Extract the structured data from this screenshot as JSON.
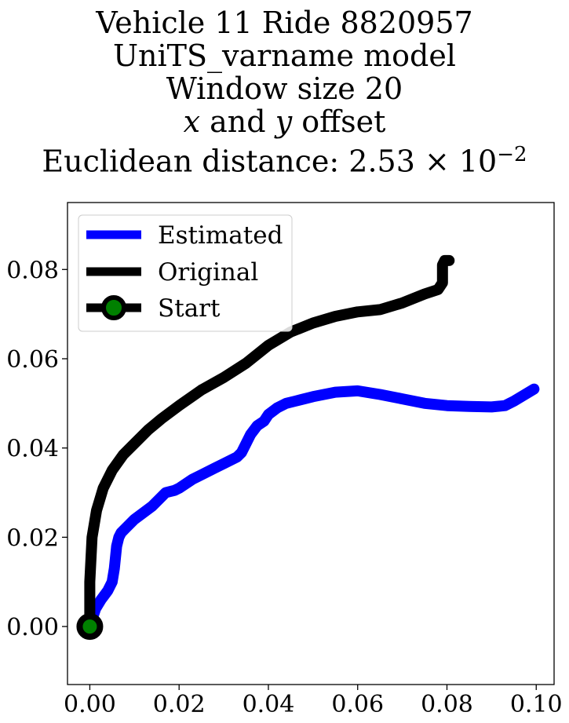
{
  "title": {
    "line1": "Vehicle 11 Ride 8820957",
    "line2": "UniTS_varname model",
    "line3": "Window size 20",
    "line4_x": "x",
    "line4_mid": " and ",
    "line4_y": "y",
    "line4_end": " offset",
    "line5_prefix": "Euclidean distance: 2.53 × 10",
    "line5_exp": "−2"
  },
  "chart_data": {
    "type": "line",
    "xlim": [
      -0.005,
      0.104
    ],
    "ylim": [
      -0.013,
      0.095
    ],
    "x_ticks": [
      0.0,
      0.02,
      0.04,
      0.06,
      0.08,
      0.1
    ],
    "x_tick_labels": [
      "0.00",
      "0.02",
      "0.04",
      "0.06",
      "0.08",
      "0.10"
    ],
    "y_ticks": [
      0.0,
      0.02,
      0.04,
      0.06,
      0.08
    ],
    "y_tick_labels": [
      "0.00",
      "0.02",
      "0.04",
      "0.06",
      "0.08"
    ],
    "grid": false,
    "legend_position": "top-left",
    "series": [
      {
        "name": "Estimated",
        "color": "#0000ff",
        "x": [
          0.0,
          0.0013,
          0.0025,
          0.004,
          0.005,
          0.0055,
          0.006,
          0.0065,
          0.007,
          0.008,
          0.01,
          0.012,
          0.014,
          0.017,
          0.019,
          0.02,
          0.023,
          0.026,
          0.028,
          0.03,
          0.033,
          0.034,
          0.035,
          0.036,
          0.0375,
          0.039,
          0.04,
          0.042,
          0.044,
          0.046,
          0.05,
          0.055,
          0.06,
          0.065,
          0.07,
          0.075,
          0.08,
          0.085,
          0.09,
          0.093,
          0.095,
          0.0995
        ],
        "y": [
          0.0,
          0.004,
          0.006,
          0.008,
          0.01,
          0.013,
          0.018,
          0.02,
          0.021,
          0.022,
          0.024,
          0.0255,
          0.027,
          0.03,
          0.0305,
          0.031,
          0.033,
          0.0345,
          0.0355,
          0.0365,
          0.038,
          0.039,
          0.041,
          0.043,
          0.045,
          0.046,
          0.0475,
          0.049,
          0.05,
          0.0505,
          0.0515,
          0.0525,
          0.0528,
          0.052,
          0.051,
          0.05,
          0.0495,
          0.0493,
          0.0492,
          0.0495,
          0.0505,
          0.0532
        ]
      },
      {
        "name": "Original",
        "color": "#000000",
        "x": [
          0.0,
          0.0,
          0.0005,
          0.0015,
          0.003,
          0.005,
          0.0075,
          0.01,
          0.013,
          0.016,
          0.02,
          0.025,
          0.03,
          0.035,
          0.04,
          0.045,
          0.05,
          0.055,
          0.06,
          0.065,
          0.07,
          0.075,
          0.078,
          0.079,
          0.079,
          0.0795,
          0.0805
        ],
        "y": [
          0.0,
          0.01,
          0.02,
          0.026,
          0.031,
          0.035,
          0.0385,
          0.041,
          0.044,
          0.0465,
          0.0495,
          0.053,
          0.0558,
          0.059,
          0.063,
          0.066,
          0.068,
          0.0695,
          0.0705,
          0.071,
          0.0725,
          0.0745,
          0.0755,
          0.077,
          0.081,
          0.082,
          0.082
        ]
      },
      {
        "name": "Start",
        "color": "#000000",
        "marker_color": "#008000",
        "x": [
          0.0
        ],
        "y": [
          0.0
        ]
      }
    ]
  }
}
